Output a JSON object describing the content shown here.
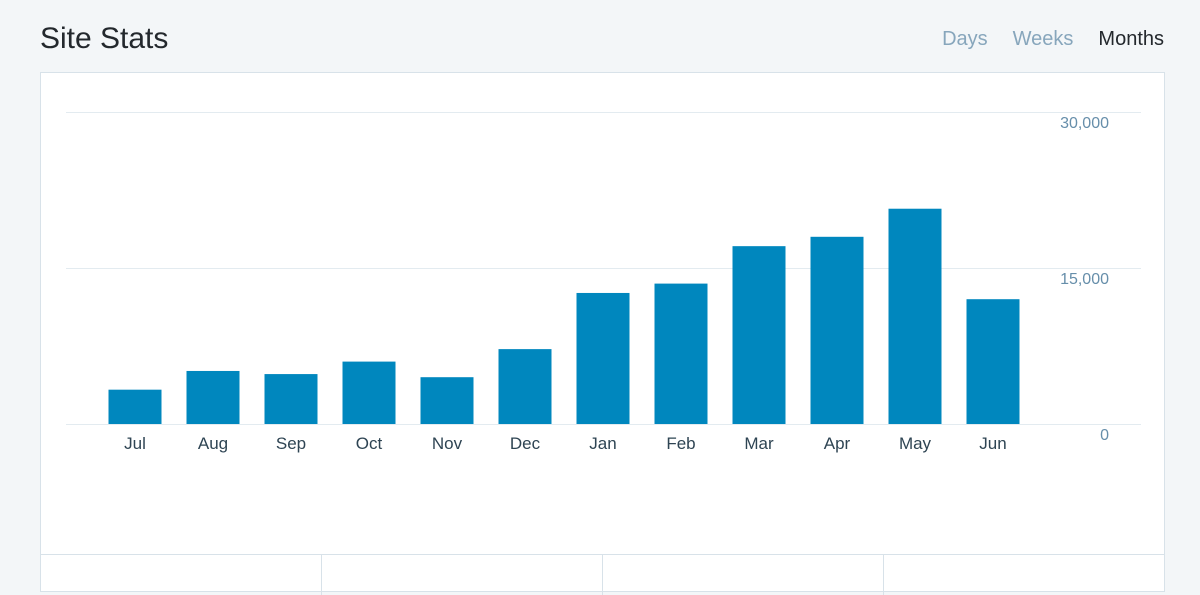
{
  "header": {
    "title": "Site Stats",
    "periods": [
      {
        "label": "Days",
        "selected": false
      },
      {
        "label": "Weeks",
        "selected": false
      },
      {
        "label": "Months",
        "selected": true
      }
    ]
  },
  "colors": {
    "bar": "#0087be",
    "grid": "#e3ebf0",
    "axis_label": "#2e4453",
    "tick_label": "#668eaa"
  },
  "chart_data": {
    "type": "bar",
    "categories": [
      "Jul",
      "Aug",
      "Sep",
      "Oct",
      "Nov",
      "Dec",
      "Jan",
      "Feb",
      "Mar",
      "Apr",
      "May",
      "Jun"
    ],
    "values": [
      3300,
      5100,
      4800,
      6000,
      4500,
      7200,
      12600,
      13500,
      17100,
      18000,
      20700,
      12000
    ],
    "y_ticks": [
      {
        "value": 30000,
        "label": "30,000"
      },
      {
        "value": 15000,
        "label": "15,000"
      },
      {
        "value": 0,
        "label": "0"
      }
    ],
    "ylim": [
      0,
      30000
    ],
    "y_axis_position": "right",
    "grid": true
  }
}
